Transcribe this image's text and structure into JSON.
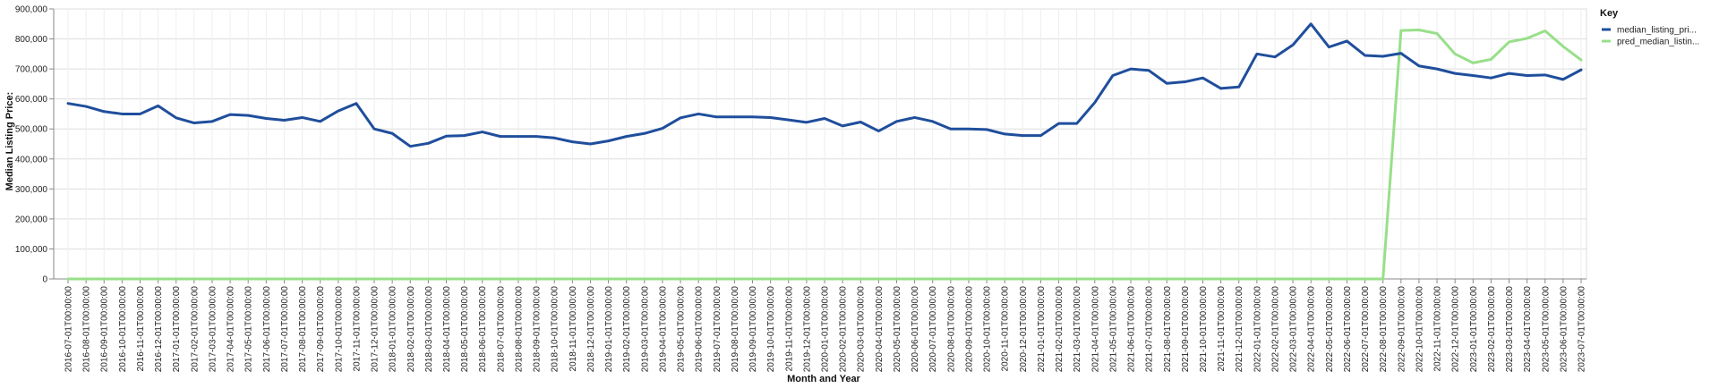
{
  "chart_data": {
    "type": "line",
    "xlabel": "Month and Year",
    "ylabel": "Median Listing Price:",
    "ylim": [
      0,
      900000
    ],
    "yticks": [
      "0",
      "100,000",
      "200,000",
      "300,000",
      "400,000",
      "500,000",
      "600,000",
      "700,000",
      "800,000",
      "900,000"
    ],
    "grid": true,
    "legend": {
      "title": "Key",
      "placement": "top-right"
    },
    "x": [
      "2016-07-01T00:00:00",
      "2016-08-01T00:00:00",
      "2016-09-01T00:00:00",
      "2016-10-01T00:00:00",
      "2016-11-01T00:00:00",
      "2016-12-01T00:00:00",
      "2017-01-01T00:00:00",
      "2017-02-01T00:00:00",
      "2017-03-01T00:00:00",
      "2017-04-01T00:00:00",
      "2017-05-01T00:00:00",
      "2017-06-01T00:00:00",
      "2017-07-01T00:00:00",
      "2017-08-01T00:00:00",
      "2017-09-01T00:00:00",
      "2017-10-01T00:00:00",
      "2017-11-01T00:00:00",
      "2017-12-01T00:00:00",
      "2018-01-01T00:00:00",
      "2018-02-01T00:00:00",
      "2018-03-01T00:00:00",
      "2018-04-01T00:00:00",
      "2018-05-01T00:00:00",
      "2018-06-01T00:00:00",
      "2018-07-01T00:00:00",
      "2018-08-01T00:00:00",
      "2018-09-01T00:00:00",
      "2018-10-01T00:00:00",
      "2018-11-01T00:00:00",
      "2018-12-01T00:00:00",
      "2019-01-01T00:00:00",
      "2019-02-01T00:00:00",
      "2019-03-01T00:00:00",
      "2019-04-01T00:00:00",
      "2019-05-01T00:00:00",
      "2019-06-01T00:00:00",
      "2019-07-01T00:00:00",
      "2019-08-01T00:00:00",
      "2019-09-01T00:00:00",
      "2019-10-01T00:00:00",
      "2019-11-01T00:00:00",
      "2019-12-01T00:00:00",
      "2020-01-01T00:00:00",
      "2020-02-01T00:00:00",
      "2020-03-01T00:00:00",
      "2020-04-01T00:00:00",
      "2020-05-01T00:00:00",
      "2020-06-01T00:00:00",
      "2020-07-01T00:00:00",
      "2020-08-01T00:00:00",
      "2020-09-01T00:00:00",
      "2020-10-01T00:00:00",
      "2020-11-01T00:00:00",
      "2020-12-01T00:00:00",
      "2021-01-01T00:00:00",
      "2021-02-01T00:00:00",
      "2021-03-01T00:00:00",
      "2021-04-01T00:00:00",
      "2021-05-01T00:00:00",
      "2021-06-01T00:00:00",
      "2021-07-01T00:00:00",
      "2021-08-01T00:00:00",
      "2021-09-01T00:00:00",
      "2021-10-01T00:00:00",
      "2021-11-01T00:00:00",
      "2021-12-01T00:00:00",
      "2022-01-01T00:00:00",
      "2022-02-01T00:00:00",
      "2022-03-01T00:00:00",
      "2022-04-01T00:00:00",
      "2022-05-01T00:00:00",
      "2022-06-01T00:00:00",
      "2022-07-01T00:00:00",
      "2022-08-01T00:00:00",
      "2022-09-01T00:00:00",
      "2022-10-01T00:00:00",
      "2022-11-01T00:00:00",
      "2022-12-01T00:00:00",
      "2023-01-01T00:00:00",
      "2023-02-01T00:00:00",
      "2023-03-01T00:00:00",
      "2023-04-01T00:00:00",
      "2023-05-01T00:00:00",
      "2023-06-01T00:00:00",
      "2023-07-01T00:00:00"
    ],
    "series": [
      {
        "name": "median_listing_pri...",
        "color": "#1f4e9c",
        "values": [
          585000,
          575000,
          558000,
          550000,
          550000,
          577000,
          537000,
          520000,
          525000,
          548000,
          545000,
          535000,
          529000,
          538000,
          525000,
          560000,
          585000,
          500000,
          485000,
          442000,
          452000,
          476000,
          478000,
          490000,
          475000,
          475000,
          475000,
          470000,
          457000,
          450000,
          460000,
          475000,
          485000,
          502000,
          537000,
          550000,
          540000,
          540000,
          540000,
          538000,
          530000,
          522000,
          535000,
          510000,
          523000,
          493000,
          525000,
          538000,
          525000,
          500000,
          500000,
          498000,
          483000,
          478000,
          478000,
          518000,
          518000,
          588000,
          678000,
          700000,
          695000,
          652000,
          657000,
          670000,
          635000,
          640000,
          750000,
          740000,
          780000,
          850000,
          773000,
          793000,
          745000,
          742000,
          752000,
          710000,
          700000,
          685000,
          678000,
          670000,
          685000,
          678000,
          680000,
          665000,
          697000
        ]
      },
      {
        "name": "pred_median_listin...",
        "color": "#98df8a",
        "values": [
          0,
          0,
          0,
          0,
          0,
          0,
          0,
          0,
          0,
          0,
          0,
          0,
          0,
          0,
          0,
          0,
          0,
          0,
          0,
          0,
          0,
          0,
          0,
          0,
          0,
          0,
          0,
          0,
          0,
          0,
          0,
          0,
          0,
          0,
          0,
          0,
          0,
          0,
          0,
          0,
          0,
          0,
          0,
          0,
          0,
          0,
          0,
          0,
          0,
          0,
          0,
          0,
          0,
          0,
          0,
          0,
          0,
          0,
          0,
          0,
          0,
          0,
          0,
          0,
          0,
          0,
          0,
          0,
          0,
          0,
          0,
          0,
          0,
          0,
          828000,
          830000,
          818000,
          750000,
          720000,
          732000,
          790000,
          802000,
          827000,
          775000,
          730000
        ]
      }
    ]
  }
}
